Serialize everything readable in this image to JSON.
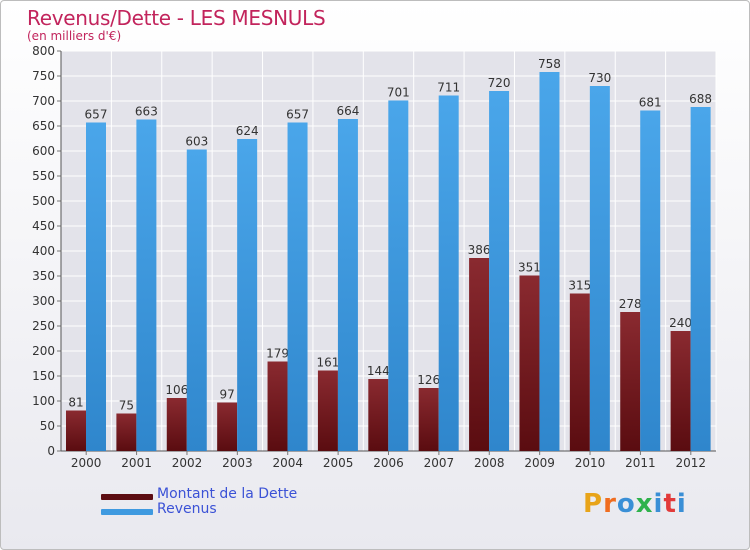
{
  "title": "Revenus/Dette - LES MESNULS",
  "subtitle": "(en milliers d'€)",
  "logo_text": "Proxiti",
  "colors": {
    "debt": "#7a1f24",
    "revenue": "#3f9ae0",
    "title": "#c2245c",
    "legend_text": "#3b52d6"
  },
  "chart_data": {
    "type": "bar",
    "categories": [
      "2000",
      "2001",
      "2002",
      "2003",
      "2004",
      "2005",
      "2006",
      "2007",
      "2008",
      "2009",
      "2010",
      "2011",
      "2012"
    ],
    "series": [
      {
        "name": "Montant de la Dette",
        "values": [
          81,
          75,
          106,
          97,
          179,
          161,
          144,
          126,
          386,
          351,
          315,
          278,
          240
        ]
      },
      {
        "name": "Revenus",
        "values": [
          657,
          663,
          603,
          624,
          657,
          664,
          701,
          711,
          720,
          758,
          730,
          681,
          688
        ]
      }
    ],
    "ylim": [
      0,
      800
    ],
    "yticks": [
      0,
      50,
      100,
      150,
      200,
      250,
      300,
      350,
      400,
      450,
      500,
      550,
      600,
      650,
      700,
      750,
      800
    ],
    "grid": true,
    "legend_position": "bottom-left"
  }
}
